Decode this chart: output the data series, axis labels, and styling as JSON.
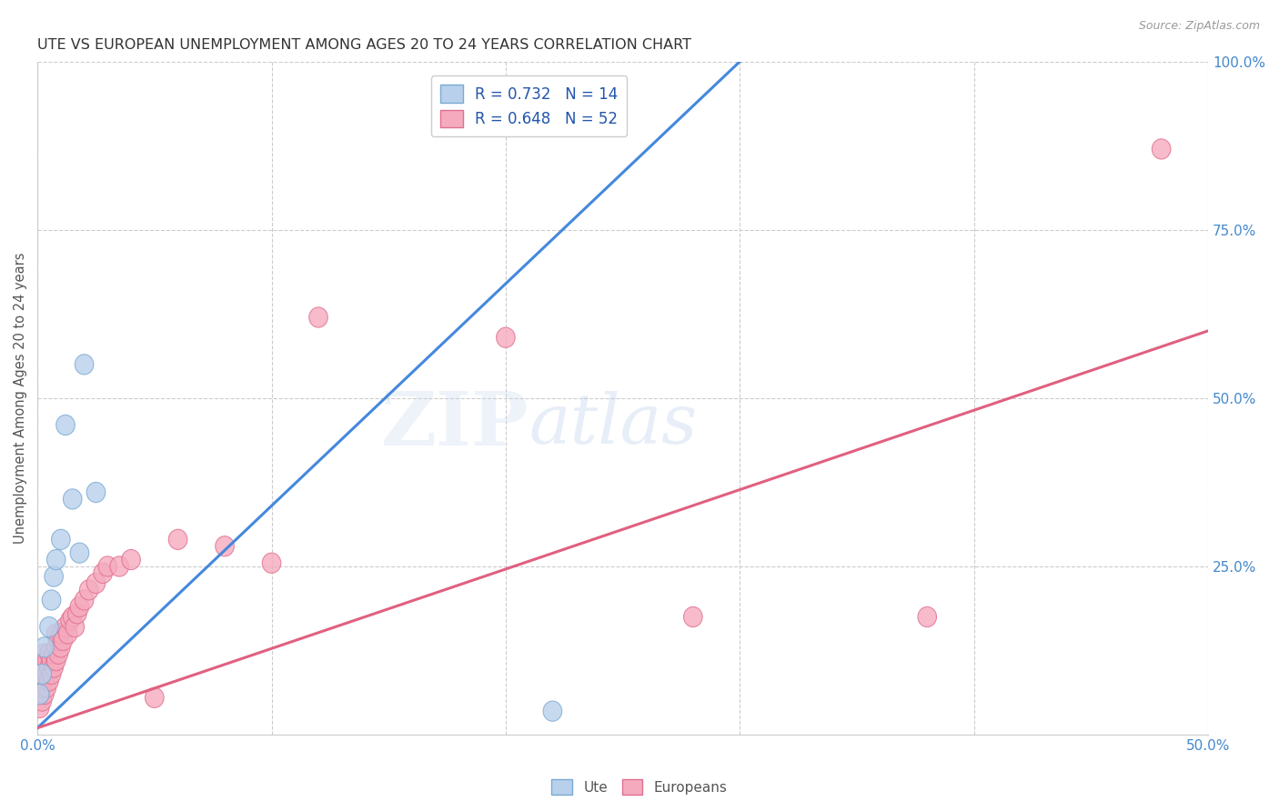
{
  "title": "UTE VS EUROPEAN UNEMPLOYMENT AMONG AGES 20 TO 24 YEARS CORRELATION CHART",
  "source": "Source: ZipAtlas.com",
  "ylabel": "Unemployment Among Ages 20 to 24 years",
  "xlim": [
    0.0,
    0.5
  ],
  "ylim": [
    0.0,
    1.0
  ],
  "xticks": [
    0.0,
    0.1,
    0.2,
    0.3,
    0.4,
    0.5
  ],
  "xtick_labels": [
    "0.0%",
    "",
    "",
    "",
    "",
    "50.0%"
  ],
  "yticks": [
    0.0,
    0.25,
    0.5,
    0.75,
    1.0
  ],
  "ytick_labels": [
    "",
    "25.0%",
    "50.0%",
    "75.0%",
    "100.0%"
  ],
  "background_color": "#ffffff",
  "grid_color": "#cccccc",
  "watermark_text": "ZIPatlas",
  "ute_color": "#b8d0ec",
  "ute_edge_color": "#7aaad4",
  "eur_color": "#f5aabe",
  "eur_edge_color": "#e07090",
  "ute_line_color": "#4488dd",
  "eur_line_color": "#e06080",
  "ute_R": 0.732,
  "ute_N": 14,
  "eur_R": 0.648,
  "eur_N": 52,
  "legend_label_ute": "Ute",
  "legend_label_eur": "Europeans",
  "ute_x": [
    0.001,
    0.002,
    0.003,
    0.005,
    0.006,
    0.007,
    0.008,
    0.01,
    0.012,
    0.015,
    0.018,
    0.02,
    0.025,
    0.22
  ],
  "ute_y": [
    0.06,
    0.09,
    0.13,
    0.16,
    0.2,
    0.235,
    0.26,
    0.29,
    0.46,
    0.35,
    0.27,
    0.55,
    0.36,
    0.035
  ],
  "eur_x": [
    0.001,
    0.001,
    0.001,
    0.001,
    0.002,
    0.002,
    0.002,
    0.003,
    0.003,
    0.003,
    0.003,
    0.004,
    0.004,
    0.004,
    0.005,
    0.005,
    0.005,
    0.006,
    0.006,
    0.007,
    0.007,
    0.008,
    0.008,
    0.008,
    0.009,
    0.009,
    0.01,
    0.01,
    0.011,
    0.012,
    0.013,
    0.014,
    0.015,
    0.016,
    0.017,
    0.018,
    0.02,
    0.022,
    0.025,
    0.028,
    0.03,
    0.035,
    0.04,
    0.05,
    0.06,
    0.08,
    0.1,
    0.12,
    0.2,
    0.28,
    0.38,
    0.48
  ],
  "eur_y": [
    0.04,
    0.06,
    0.08,
    0.1,
    0.05,
    0.07,
    0.09,
    0.06,
    0.08,
    0.1,
    0.12,
    0.07,
    0.09,
    0.11,
    0.08,
    0.1,
    0.12,
    0.09,
    0.11,
    0.1,
    0.12,
    0.11,
    0.13,
    0.15,
    0.12,
    0.14,
    0.13,
    0.15,
    0.14,
    0.16,
    0.15,
    0.17,
    0.175,
    0.16,
    0.18,
    0.19,
    0.2,
    0.215,
    0.225,
    0.24,
    0.25,
    0.25,
    0.26,
    0.055,
    0.29,
    0.28,
    0.255,
    0.62,
    0.59,
    0.175,
    0.175,
    0.87
  ],
  "ute_line_x": [
    0.0,
    0.3
  ],
  "ute_line_y": [
    0.01,
    1.0
  ],
  "eur_line_x": [
    0.0,
    0.5
  ],
  "eur_line_y": [
    0.01,
    0.6
  ]
}
